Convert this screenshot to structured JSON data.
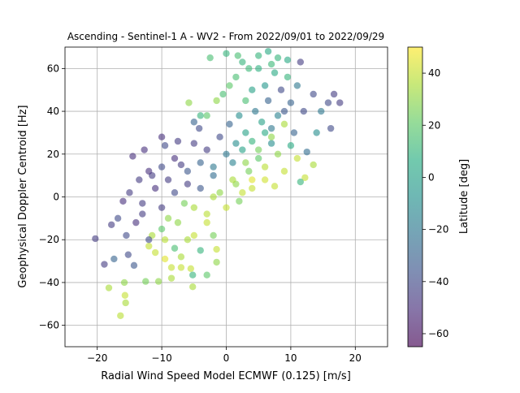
{
  "chart_data": {
    "type": "scatter",
    "title": "Ascending - Sentinel-1 A - WV2 - From 2022/09/01 to 2022/09/29",
    "xlabel": "Radial Wind Speed Model ECMWF (0.125) [m/s]",
    "ylabel": "Geophysical Doppler Centroid [Hz]",
    "xlim": [
      -25,
      25
    ],
    "ylim": [
      -70,
      70
    ],
    "xticks": [
      -20,
      -10,
      0,
      10,
      20
    ],
    "yticks": [
      -60,
      -40,
      -20,
      0,
      20,
      40,
      60
    ],
    "grid": true,
    "point_opacity": 0.6,
    "colorbar": {
      "label": "Latitude [deg]",
      "colormap": "viridis",
      "range": [
        -65,
        50
      ],
      "ticks": [
        -60,
        -40,
        -20,
        0,
        20,
        40
      ]
    },
    "points": [
      [
        -20.3,
        -19.5,
        -45
      ],
      [
        -18.9,
        -31.5,
        -45
      ],
      [
        -18.2,
        -42.5,
        35
      ],
      [
        -17.4,
        -29,
        -30
      ],
      [
        -16.4,
        -55.5,
        38
      ],
      [
        -15.8,
        -40,
        30
      ],
      [
        -15.7,
        -46,
        40
      ],
      [
        -15.6,
        -49.5,
        35
      ],
      [
        -16.8,
        -10,
        -40
      ],
      [
        -17.8,
        -13,
        -45
      ],
      [
        -15.2,
        -27,
        -40
      ],
      [
        -14.3,
        -32,
        -35
      ],
      [
        -12.5,
        -39.5,
        25
      ],
      [
        -10.5,
        -39.5,
        30
      ],
      [
        -8.5,
        -38,
        35
      ],
      [
        -8.5,
        -33,
        40
      ],
      [
        -9.5,
        -29,
        45
      ],
      [
        -7,
        -33,
        40
      ],
      [
        -5.5,
        -33.5,
        40
      ],
      [
        -5.2,
        -36.5,
        10
      ],
      [
        -3,
        -36.5,
        20
      ],
      [
        -5.2,
        -42,
        35
      ],
      [
        -1.5,
        -30.5,
        30
      ],
      [
        -1.5,
        -24.5,
        40
      ],
      [
        -14.5,
        19,
        -50
      ],
      [
        -12.7,
        22,
        -50
      ],
      [
        -11.5,
        10,
        -45
      ],
      [
        -10,
        28,
        -50
      ],
      [
        -9.5,
        24,
        -40
      ],
      [
        -7.5,
        26,
        -45
      ],
      [
        -5,
        35,
        -30
      ],
      [
        -4.2,
        32,
        -40
      ],
      [
        -5.8,
        44,
        30
      ],
      [
        -4,
        38,
        10
      ],
      [
        -3,
        38,
        20
      ],
      [
        -1.5,
        45,
        30
      ],
      [
        -0.5,
        48,
        15
      ],
      [
        0.5,
        52,
        20
      ],
      [
        1.5,
        56,
        15
      ],
      [
        2.5,
        63,
        10
      ],
      [
        -2.5,
        65,
        15
      ],
      [
        0,
        67,
        10
      ],
      [
        1.8,
        66,
        15
      ],
      [
        3.5,
        60,
        12
      ],
      [
        5,
        66,
        10
      ],
      [
        6.5,
        68,
        5
      ],
      [
        8,
        65,
        10
      ],
      [
        9.5,
        64,
        5
      ],
      [
        11.5,
        63,
        -45
      ],
      [
        13.5,
        48,
        -40
      ],
      [
        14.7,
        40,
        -20
      ],
      [
        15.8,
        44,
        -40
      ],
      [
        16.7,
        48,
        -45
      ],
      [
        17.6,
        44,
        -45
      ],
      [
        16.2,
        32,
        -40
      ],
      [
        14,
        30,
        -10
      ],
      [
        12.5,
        21,
        -25
      ],
      [
        13.5,
        15,
        35
      ],
      [
        12.2,
        9,
        40
      ],
      [
        11.5,
        7,
        10
      ],
      [
        7.5,
        5,
        40
      ],
      [
        6,
        8,
        42
      ],
      [
        4,
        4,
        40
      ],
      [
        2.5,
        2,
        40
      ],
      [
        -2,
        0,
        35
      ],
      [
        -5,
        -5,
        35
      ],
      [
        -6.5,
        -3,
        25
      ],
      [
        -9,
        -10,
        30
      ],
      [
        -10,
        -15,
        20
      ],
      [
        -11.5,
        -18,
        35
      ],
      [
        -12,
        -23,
        40
      ],
      [
        -13,
        -8,
        -45
      ],
      [
        -15.5,
        -18,
        -40
      ],
      [
        -16,
        -2,
        -50
      ],
      [
        -15,
        2,
        -45
      ],
      [
        -13.5,
        8,
        -45
      ],
      [
        -12,
        12,
        -50
      ],
      [
        -10,
        14,
        -40
      ],
      [
        -8,
        18,
        -50
      ],
      [
        -6,
        12,
        -35
      ],
      [
        -4,
        16,
        -30
      ],
      [
        -2,
        10,
        -25
      ],
      [
        0,
        20,
        -20
      ],
      [
        1.5,
        25,
        -10
      ],
      [
        3,
        30,
        0
      ],
      [
        4.5,
        40,
        -20
      ],
      [
        6.5,
        45,
        -30
      ],
      [
        8.5,
        50,
        -40
      ],
      [
        9,
        40,
        -35
      ],
      [
        10.5,
        30,
        -30
      ],
      [
        7,
        25,
        -10
      ],
      [
        5,
        18,
        20
      ],
      [
        3.5,
        12,
        25
      ],
      [
        1.5,
        6,
        30
      ],
      [
        0,
        -5,
        40
      ],
      [
        -3,
        -12,
        40
      ],
      [
        -6,
        -20,
        35
      ],
      [
        -8,
        -24,
        15
      ],
      [
        -4,
        -25,
        10
      ],
      [
        -2,
        -18,
        25
      ],
      [
        2,
        -2,
        25
      ],
      [
        4,
        8,
        45
      ],
      [
        6,
        14,
        38
      ],
      [
        8,
        20,
        30
      ],
      [
        10,
        24,
        5
      ],
      [
        11,
        18,
        40
      ],
      [
        9,
        12,
        40
      ],
      [
        7,
        32,
        -20
      ],
      [
        5.5,
        35,
        0
      ],
      [
        3,
        45,
        15
      ],
      [
        2,
        38,
        -10
      ],
      [
        0.5,
        34,
        -30
      ],
      [
        -1,
        28,
        -40
      ],
      [
        -3,
        22,
        -45
      ],
      [
        -5,
        25,
        -45
      ],
      [
        -7,
        15,
        -45
      ],
      [
        -9,
        8,
        -45
      ],
      [
        -11,
        4,
        -50
      ],
      [
        -13,
        -3,
        -45
      ],
      [
        -14,
        -12,
        -50
      ],
      [
        -12,
        -20,
        -40
      ],
      [
        -10,
        -5,
        -45
      ],
      [
        -8,
        2,
        -40
      ],
      [
        -6,
        6,
        -45
      ],
      [
        -4,
        4,
        -35
      ],
      [
        -2,
        14,
        -20
      ],
      [
        1,
        16,
        -15
      ],
      [
        2.5,
        22,
        0
      ],
      [
        4,
        26,
        10
      ],
      [
        6,
        30,
        5
      ],
      [
        8,
        38,
        -15
      ],
      [
        10,
        44,
        -30
      ],
      [
        12,
        40,
        -40
      ],
      [
        11,
        52,
        -20
      ],
      [
        9.5,
        56,
        10
      ],
      [
        7.5,
        58,
        5
      ],
      [
        6,
        52,
        -5
      ],
      [
        4,
        50,
        0
      ],
      [
        5,
        60,
        8
      ],
      [
        7,
        62,
        12
      ],
      [
        -7.5,
        -12,
        30
      ],
      [
        -9.5,
        -20,
        38
      ],
      [
        -11,
        -26,
        40
      ],
      [
        -7,
        -28,
        35
      ],
      [
        -5,
        -18,
        40
      ],
      [
        -3,
        -8,
        38
      ],
      [
        -1,
        2,
        30
      ],
      [
        1,
        8,
        35
      ],
      [
        3,
        16,
        30
      ],
      [
        5,
        22,
        25
      ],
      [
        7,
        28,
        30
      ],
      [
        9,
        34,
        35
      ]
    ]
  }
}
